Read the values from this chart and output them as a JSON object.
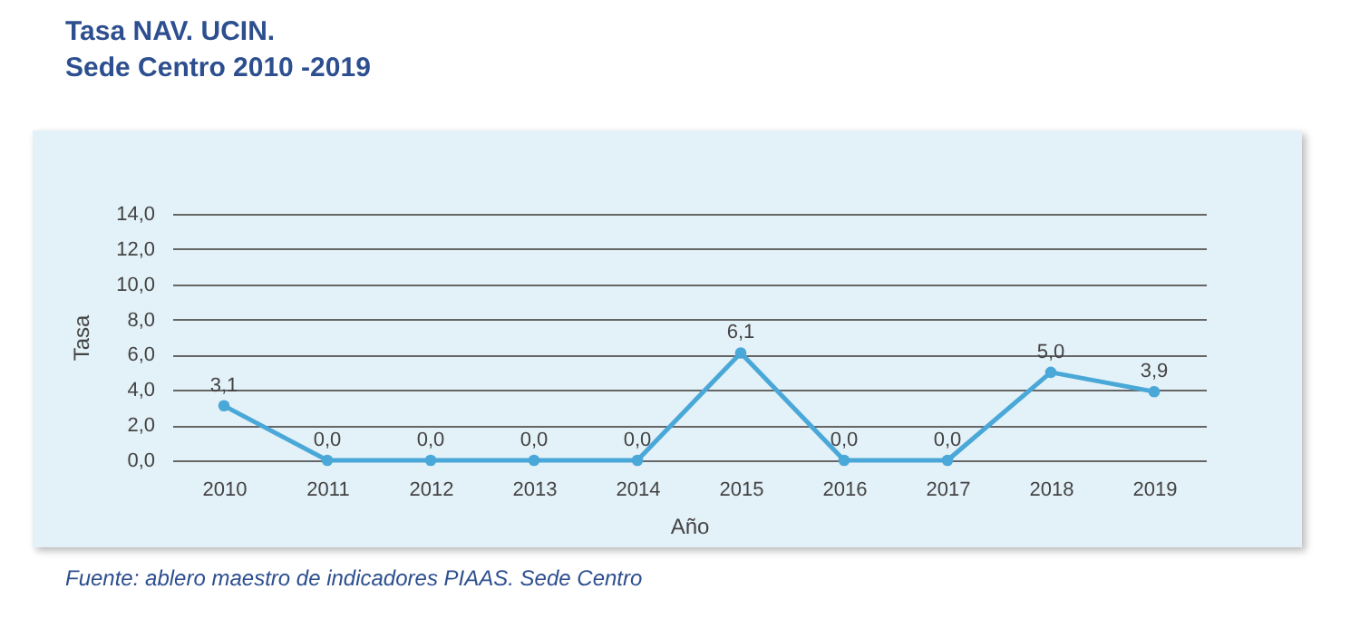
{
  "chart_data": {
    "type": "line",
    "title": "Tasa NAV. UCIN.",
    "subtitle": "Sede Centro 2010 -2019",
    "xlabel": "Año",
    "ylabel": "Tasa",
    "categories": [
      "2010",
      "2011",
      "2012",
      "2013",
      "2014",
      "2015",
      "2016",
      "2017",
      "2018",
      "2019"
    ],
    "values": [
      3.1,
      0,
      0,
      0,
      0,
      6.1,
      0,
      0,
      5.0,
      3.9
    ],
    "value_labels": [
      "3,1",
      "0,0",
      "0,0",
      "0,0",
      "0,0",
      "6,1",
      "0,0",
      "0,0",
      "5,0",
      "3,9"
    ],
    "color": "#4aa8d8",
    "ylim": [
      0,
      14
    ],
    "yticks": [
      {
        "value": 0,
        "label": "0,0"
      },
      {
        "value": 2,
        "label": "2,0"
      },
      {
        "value": 4,
        "label": "4,0"
      },
      {
        "value": 6,
        "label": "6,0"
      },
      {
        "value": 8,
        "label": "8,0"
      },
      {
        "value": 10,
        "label": "10,0"
      },
      {
        "value": 12,
        "label": "12,0"
      },
      {
        "value": 14,
        "label": "14,0"
      }
    ],
    "grid": "y",
    "marker": "circle",
    "line_style": "solid",
    "annotations": [
      "Fuente: ablero maestro de indicadores PIAAS. Sede Centro"
    ]
  }
}
